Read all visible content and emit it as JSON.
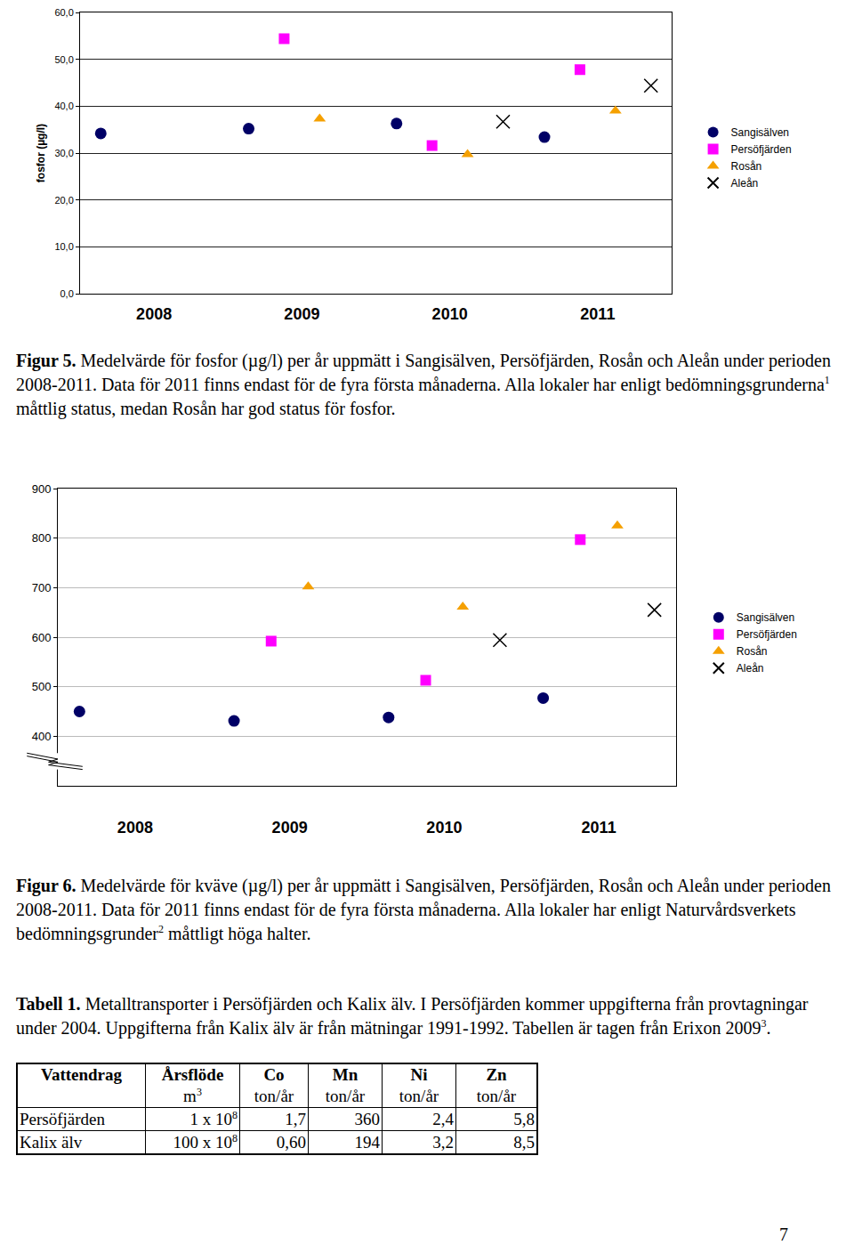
{
  "chart_data": [
    {
      "type": "scatter",
      "y_label": "fosfor (µg/l)",
      "categories": [
        "2008",
        "2009",
        "2010",
        "2011"
      ],
      "ylim": [
        0,
        60
      ],
      "yticks": [
        {
          "value": 0,
          "label": "0,0"
        },
        {
          "value": 10,
          "label": "10,0"
        },
        {
          "value": 20,
          "label": "20,0"
        },
        {
          "value": 30,
          "label": "30,0"
        },
        {
          "value": 40,
          "label": "40,0"
        },
        {
          "value": 50,
          "label": "50,0"
        },
        {
          "value": 60,
          "label": "60,0"
        }
      ],
      "grid": true,
      "legend": "right",
      "series": [
        {
          "name": "Sangisälven",
          "color": "#000066",
          "marker": "circle",
          "values": [
            34.2,
            35.2,
            36.3,
            33.4
          ]
        },
        {
          "name": "Persöfjärden",
          "color": "#ff00ff",
          "marker": "square",
          "values": [
            null,
            54.4,
            31.6,
            47.8
          ]
        },
        {
          "name": "Rosån",
          "color": "#f5a000",
          "marker": "triangle",
          "values": [
            null,
            37.3,
            29.7,
            39.0
          ]
        },
        {
          "name": "Aleån",
          "color": "#000000",
          "marker": "x",
          "values": [
            null,
            null,
            36.7,
            44.4
          ]
        }
      ]
    },
    {
      "type": "scatter",
      "categories": [
        "2008",
        "2009",
        "2010",
        "2011"
      ],
      "ylim": [
        300,
        900
      ],
      "yticks": [
        400,
        500,
        600,
        700,
        800,
        900
      ],
      "grid": true,
      "legend": "right",
      "series": [
        {
          "name": "Sangisälven",
          "color": "#000066",
          "marker": "circle",
          "values": [
            450,
            431,
            438,
            477
          ]
        },
        {
          "name": "Persöfjärden",
          "color": "#ff00ff",
          "marker": "square",
          "values": [
            null,
            592,
            513,
            797
          ]
        },
        {
          "name": "Rosån",
          "color": "#f5a000",
          "marker": "triangle",
          "values": [
            null,
            702,
            661,
            825
          ]
        },
        {
          "name": "Aleån",
          "color": "#000000",
          "marker": "x",
          "values": [
            null,
            null,
            594,
            655
          ]
        }
      ]
    }
  ],
  "captions": [
    {
      "label": "Figur 5.",
      "text": " Medelvärde för fosfor (µg/l) per år uppmätt i Sangisälven, Persöfjärden, Rosån och Aleån under perioden 2008-2011. Data för 2011 finns endast för de fyra första månaderna. Alla lokaler har enligt bedömningsgrunderna",
      "sup": "1",
      "text_after": " måttlig status, medan Rosån har god status för fosfor."
    },
    {
      "label": "Figur 6.",
      "text": " Medelvärde för kväve (µg/l) per år uppmätt i Sangisälven, Persöfjärden, Rosån och Aleån under perioden 2008-2011. Data för 2011 finns endast för de fyra första månaderna. Alla lokaler har enligt Naturvårdsverkets bedömningsgrunder",
      "sup": "2",
      "text_after": " måttligt höga halter."
    },
    {
      "label": "Tabell 1.",
      "text": " Metalltransporter i Persöfjärden och Kalix älv. I Persöfjärden kommer uppgifterna från provtagningar under 2004. Uppgifterna från Kalix älv är från mätningar 1991-1992. Tabellen är tagen från Erixon 2009",
      "sup": "3",
      "text_after": "."
    }
  ],
  "table": {
    "header": [
      {
        "title": "Vattendrag"
      },
      {
        "title": "Årsflöde",
        "unit": "m",
        "unit_sup": "3"
      },
      {
        "title": "Co",
        "unit": "ton/år"
      },
      {
        "title": "Mn",
        "unit": "ton/år"
      },
      {
        "title": "Ni",
        "unit": "ton/år"
      },
      {
        "title": "Zn",
        "unit": "ton/år"
      }
    ],
    "rows": [
      [
        "Persöfjärden",
        {
          "text": "1 x 10",
          "sup": "8"
        },
        "1,7",
        "360",
        "2,4",
        "5,8"
      ],
      [
        "Kalix älv",
        {
          "text": "100 x 10",
          "sup": "8"
        },
        "0,60",
        "194",
        "3,2",
        "8,5"
      ]
    ]
  },
  "page_number": "7"
}
